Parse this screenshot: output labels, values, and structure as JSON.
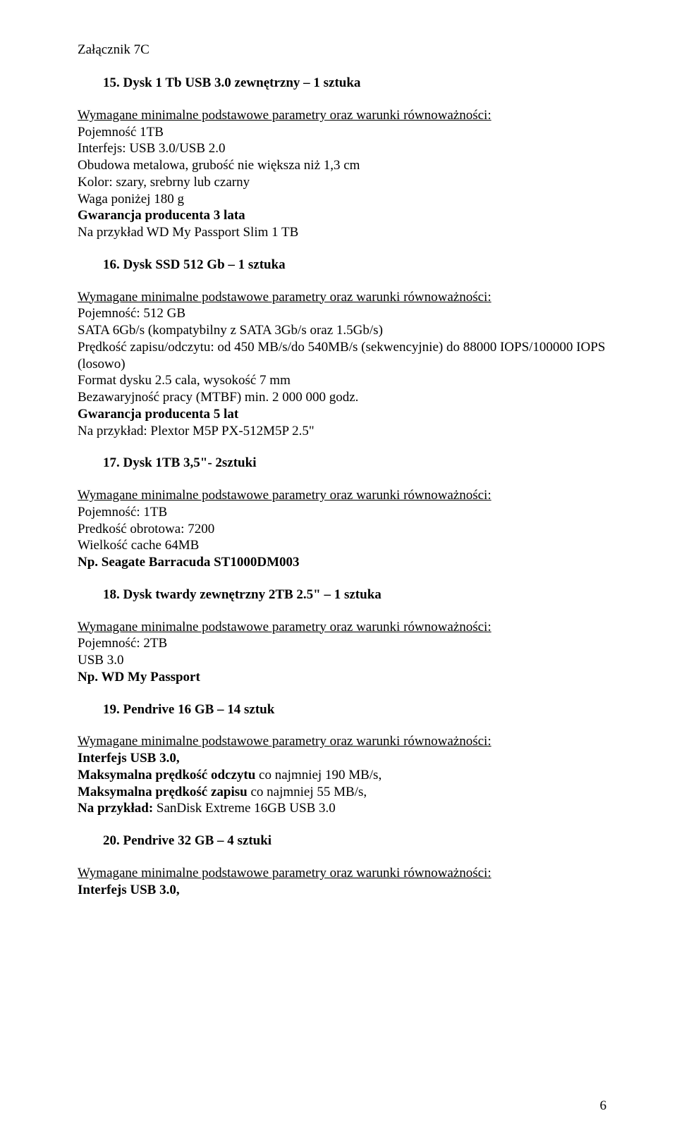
{
  "doc": {
    "header": "Załącznik 7C",
    "page_number": "6"
  },
  "s15": {
    "title": "15. Dysk  1 Tb USB 3.0 zewnętrzny – 1 sztuka",
    "req": "Wymagane minimalne podstawowe parametry oraz warunki równoważności:",
    "l1": "Pojemność 1TB",
    "l2": "Interfejs: USB 3.0/USB 2.0",
    "l3": "Obudowa metalowa, grubość nie większa niż 1,3 cm",
    "l4": "Kolor: szary, srebrny lub czarny",
    "l5": "Waga poniżej 180 g",
    "l6": "Gwarancja producenta 3 lata",
    "l7": "Na przykład WD My Passport Slim 1 TB"
  },
  "s16": {
    "title": "16. Dysk SSD 512 Gb – 1 sztuka",
    "req": "Wymagane minimalne podstawowe parametry oraz warunki równoważności:",
    "l1": "Pojemność: 512 GB",
    "l2": "SATA 6Gb/s (kompatybilny z SATA 3Gb/s oraz 1.5Gb/s)",
    "l3": "Prędkość zapisu/odczytu: od 450 MB/s/do 540MB/s (sekwencyjnie) do 88000 IOPS/100000 IOPS (losowo)",
    "l4": "Format dysku 2.5 cala, wysokość 7 mm",
    "l5": "Bezawaryjność pracy (MTBF) min. 2 000 000 godz.",
    "l6": "Gwarancja producenta 5 lat",
    "l7": "Na przykład: Plextor M5P PX-512M5P 2.5\""
  },
  "s17": {
    "title": "17. Dysk 1TB 3,5\"- 2sztuki",
    "req": "Wymagane minimalne podstawowe parametry oraz warunki równoważności:",
    "l1": "Pojemność: 1TB",
    "l2": "Predkość obrotowa: 7200",
    "l3": "Wielkość cache 64MB",
    "l4": "Np. Seagate Barracuda ST1000DM003"
  },
  "s18": {
    "title": "18. Dysk twardy zewnętrzny 2TB 2.5\" – 1 sztuka",
    "req": "Wymagane minimalne podstawowe parametry oraz warunki równoważności:",
    "l1": "Pojemność: 2TB",
    "l2": "USB 3.0",
    "l3": "Np.  WD My Passport"
  },
  "s19": {
    "title": "19. Pendrive 16 GB – 14 sztuk",
    "req": "Wymagane minimalne podstawowe parametry oraz warunki równoważności:",
    "l1": "Interfejs USB 3.0,",
    "l2": "Maksymalna prędkość odczytu co najmniej 190 MB/s,",
    "l3": "Maksymalna prędkość zapisu co najmniej 55 MB/s,",
    "l4": "Na przykład: SanDisk Extreme 16GB USB 3.0"
  },
  "s20": {
    "title": "20. Pendrive 32 GB – 4 sztuki",
    "req": "Wymagane minimalne podstawowe parametry oraz warunki równoważności:",
    "l1": "Interfejs USB 3.0,"
  }
}
